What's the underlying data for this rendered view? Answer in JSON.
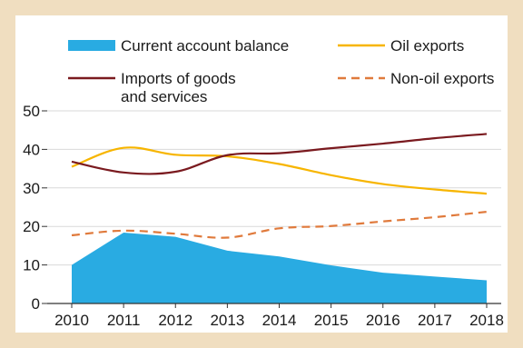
{
  "chart_data": {
    "type": "line",
    "title": "",
    "xlabel": "",
    "ylabel": "",
    "categories": [
      "2010",
      "2011",
      "2012",
      "2013",
      "2014",
      "2015",
      "2016",
      "2017",
      "2018"
    ],
    "ylim": [
      0,
      50
    ],
    "yticks": [
      0,
      10,
      20,
      30,
      40,
      50
    ],
    "grid": "horizontal",
    "legend_position": "top",
    "series": [
      {
        "name": "Current account balance",
        "kind": "area",
        "color": "#29abe2",
        "values": [
          10,
          18.4,
          17.3,
          13.7,
          12.2,
          9.9,
          8.0,
          7.0,
          6.0
        ]
      },
      {
        "name": "Oil exports",
        "kind": "line",
        "color": "#f7b500",
        "values": [
          35.5,
          40.4,
          38.6,
          38.2,
          36.2,
          33.3,
          31.0,
          29.6,
          28.5
        ]
      },
      {
        "name": "Imports of goods and services",
        "legend_lines": [
          "Imports of goods",
          "and services"
        ],
        "kind": "line",
        "color": "#7a1a1f",
        "values": [
          36.8,
          34.0,
          34.2,
          38.5,
          39.0,
          40.3,
          41.5,
          42.9,
          44.0
        ]
      },
      {
        "name": "Non-oil exports",
        "kind": "dashed",
        "color": "#e07a3c",
        "values": [
          17.7,
          18.9,
          18.1,
          17.1,
          19.5,
          20.1,
          21.3,
          22.4,
          23.8
        ]
      }
    ]
  }
}
